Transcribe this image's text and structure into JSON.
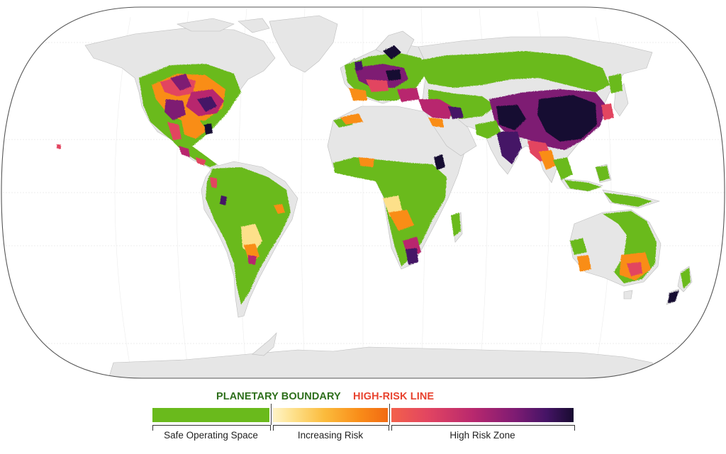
{
  "map": {
    "projection": "world equal-earth style",
    "colors": {
      "land_base": "#e6e6e6",
      "ocean": "#ffffff",
      "safe": "#6aba1c",
      "increasing_low": "#fde08a",
      "increasing_high": "#f98d19",
      "high_low": "#e24561",
      "high_mid": "#7e1b73",
      "high_max": "#180b30"
    }
  },
  "legend": {
    "boundary_label": "PLANETARY BOUNDARY",
    "high_risk_label": "HIGH-RISK LINE",
    "boundary_color": "#2e6f1c",
    "high_risk_color": "#e8432f",
    "segments": [
      {
        "label": "Safe Operating Space"
      },
      {
        "label": "Increasing Risk"
      },
      {
        "label": "High Risk Zone"
      }
    ]
  }
}
